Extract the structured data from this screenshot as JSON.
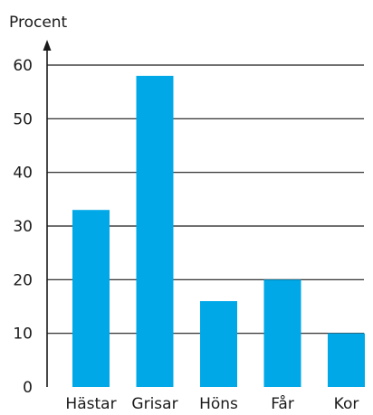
{
  "chart_data": {
    "type": "bar",
    "ylabel": "Procent",
    "categories": [
      "Hästar",
      "Grisar",
      "Höns",
      "Får",
      "Kor"
    ],
    "values": [
      33,
      58,
      16,
      20,
      10
    ],
    "ylim": [
      0,
      60
    ],
    "yticks": [
      0,
      10,
      20,
      30,
      40,
      50,
      60
    ],
    "grid": true,
    "bar_color": "#00a8e8"
  }
}
